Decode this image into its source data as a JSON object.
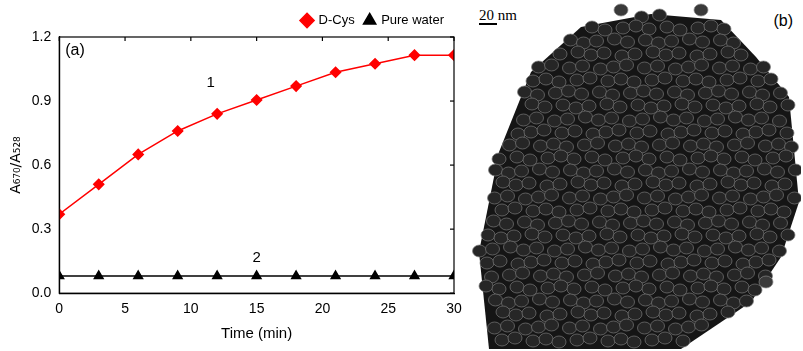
{
  "chart_data": {
    "type": "line",
    "panel_label": "(a)",
    "x_label": "Time (min)",
    "y_label": "A₆₇₀/A₅₂₈",
    "x": [
      0,
      3,
      6,
      9,
      12,
      15,
      18,
      21,
      24,
      27,
      30
    ],
    "series": [
      {
        "name": "D-Cys",
        "color": "#ff0000",
        "marker": "diamond",
        "values": [
          0.37,
          0.51,
          0.65,
          0.76,
          0.84,
          0.905,
          0.97,
          1.035,
          1.075,
          1.115,
          1.115
        ]
      },
      {
        "name": "Pure water",
        "color": "#000000",
        "marker": "triangle",
        "values": [
          0.08,
          0.08,
          0.08,
          0.08,
          0.08,
          0.08,
          0.08,
          0.08,
          0.08,
          0.08,
          0.08
        ]
      }
    ],
    "xlim": [
      0,
      30
    ],
    "xticks": [
      0,
      5,
      10,
      15,
      20,
      25,
      30
    ],
    "ylim": [
      0,
      1.2
    ],
    "yticks": [
      {
        "value": 0,
        "label": "0.0"
      },
      0.3,
      0.6,
      0.9,
      1.2
    ],
    "legend": "top",
    "grid": false,
    "annotations": [
      {
        "text": "1",
        "x": 11.5,
        "y": 0.95
      },
      {
        "text": "2",
        "x": 15,
        "y": 0.13
      }
    ]
  },
  "image_panel": {
    "label": "(b)",
    "scale_bar_label": "20 nm"
  }
}
